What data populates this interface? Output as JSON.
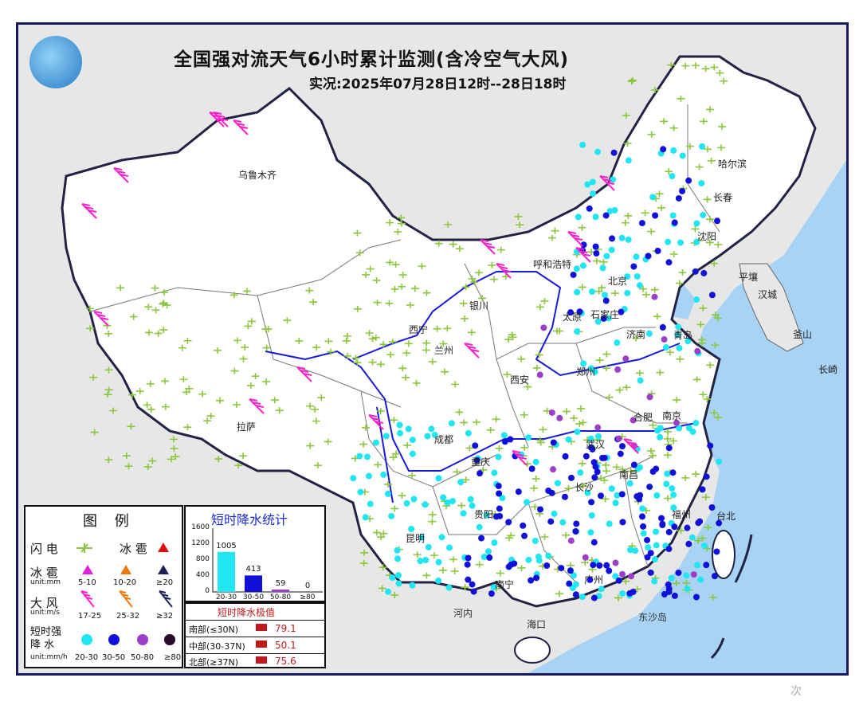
{
  "title": "全国强对流天气6小时累计监测(含冷空气大风)",
  "subtitle": "实况:2025年07月28日12时--28日18时",
  "colors": {
    "land": "#ffffff",
    "foreign": "#e7e7e7",
    "sea": "#a9d3f5",
    "border": "#222244",
    "river": "#1a1adb",
    "lightning": "#8cc63e",
    "wind": "#ff22cc",
    "rain_20_30": "#22e5f2",
    "rain_30_50": "#1010d8",
    "rain_50_80": "#9b3fc8",
    "rain_80": "#2a0a2a"
  },
  "cities": [
    "乌鲁木齐",
    "哈尔滨",
    "长春",
    "沈阳",
    "呼和浩特",
    "北京",
    "银川",
    "太原",
    "石家庄",
    "济南",
    "青岛",
    "西宁",
    "兰州",
    "西安",
    "郑州",
    "合肥",
    "南京",
    "拉萨",
    "成都",
    "武汉",
    "重庆",
    "长沙",
    "南昌",
    "贵阳",
    "昆明",
    "南宁",
    "广州",
    "海口",
    "福州",
    "台北",
    "平壤",
    "汉城",
    "釜山",
    "长崎"
  ],
  "seas": [
    "河内",
    "东沙岛"
  ],
  "legend": {
    "title": "图 例",
    "rows": [
      {
        "label": "闪 电",
        "icon": "lightning-icon"
      },
      {
        "label": "冰 雹",
        "icon": "hail-icon",
        "note": "冰 雹"
      },
      {
        "label": "冰 雹",
        "unit": "unit:mm",
        "ranges": [
          "5-10",
          "10-20",
          "≥20"
        ]
      },
      {
        "label": "大 风",
        "unit": "unit:m/s",
        "ranges": [
          "17-25",
          "25-32",
          "≥32"
        ]
      },
      {
        "label": "短时强 降 水",
        "unit": "unit:mm/h",
        "ranges": [
          "20-30",
          "30-50",
          "50-80",
          "≥80"
        ]
      }
    ]
  },
  "stats_title": "短时降水统计",
  "chart_data": {
    "type": "bar",
    "categories": [
      "20-30",
      "30-50",
      "50-80",
      "≥80"
    ],
    "values": [
      1005,
      413,
      59,
      0
    ],
    "ylim": [
      0,
      1600
    ],
    "yticks": [
      0,
      400,
      800,
      1200,
      1600
    ],
    "colors": [
      "#22e5f2",
      "#1010d8",
      "#9b3fc8",
      "#2a0a2a"
    ]
  },
  "extremes": {
    "title": "短时降水极值",
    "rows": [
      {
        "label": "南部(≤30N)",
        "value": "79.1"
      },
      {
        "label": "中部(30-37N)",
        "value": "50.1"
      },
      {
        "label": "北部(≥37N)",
        "value": "75.6"
      }
    ]
  },
  "watermark": "次"
}
